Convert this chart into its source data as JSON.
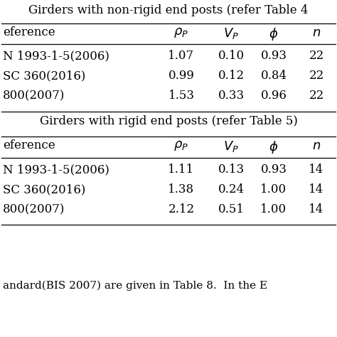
{
  "table1_title": "Girders with non-rigid end posts (refer Table 4",
  "table2_title": "Girders with rigid end posts (refer Table 5)",
  "footer_text": "andard(BIS 2007) are given in Table 8.  In the E",
  "col_header_ref": "eference",
  "table1_rows": [
    [
      "N 1993-1-5(2006)",
      "1.07",
      "0.10",
      "0.93",
      "22"
    ],
    [
      "SC 360(2016)",
      "0.99",
      "0.12",
      "0.84",
      "22"
    ],
    [
      "800(2007)",
      "1.53",
      "0.33",
      "0.96",
      "22"
    ]
  ],
  "table2_rows": [
    [
      "N 1993-1-5(2006)",
      "1.11",
      "0.13",
      "0.93",
      "14"
    ],
    [
      "SC 360(2016)",
      "1.38",
      "0.24",
      "1.00",
      "14"
    ],
    [
      "800(2007)",
      "2.12",
      "0.51",
      "1.00",
      "14"
    ]
  ],
  "bg_color": "#ffffff",
  "text_color": "#000000",
  "line_color": "#000000",
  "font_size": 12,
  "title_font_size": 12,
  "footer_font_size": 11,
  "fig_width": 4.74,
  "fig_height": 4.74,
  "dpi": 100
}
